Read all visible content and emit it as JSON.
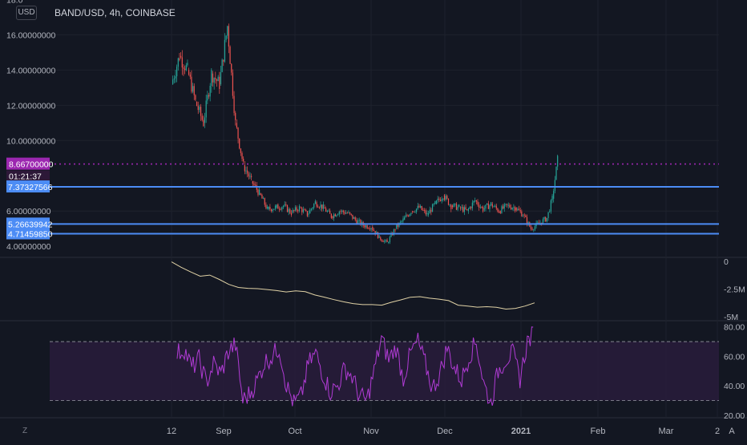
{
  "header": {
    "currency_button": "USD",
    "symbol_title": "BAND/USD, 4h, COINBASE"
  },
  "footer": {
    "left_icon": "Z",
    "right_icon": "A"
  },
  "colors": {
    "background": "#131722",
    "up": "#26a69a",
    "down": "#ef5350",
    "line": "#e0d2a6",
    "rsi": "#b03bd4",
    "rsi_band": "#2a1d3d",
    "level": "#4c8cf5",
    "current_price": "#9c27b0"
  },
  "chart_data": [
    {
      "type": "candlestick",
      "title": "BAND/USD, 4h, COINBASE",
      "ylim": [
        3.6,
        18.2
      ],
      "y_ticks": [
        "16.00000000",
        "14.00000000",
        "12.00000000",
        "10.00000000",
        "6.00000000"
      ],
      "y_ticks_partial": [
        "18.0",
        "4.00000000"
      ],
      "x_ticks": [
        "12",
        "Sep",
        "Oct",
        "Nov",
        "Dec",
        "2021",
        "Feb",
        "Mar",
        "2"
      ],
      "x_range": [
        "2020-08-12",
        "2021-03-05"
      ],
      "price_series": {
        "dates": [
          "2020-08-12",
          "2020-08-15",
          "2020-08-18",
          "2020-08-21",
          "2020-08-24",
          "2020-08-27",
          "2020-08-30",
          "2020-09-02",
          "2020-09-05",
          "2020-09-08",
          "2020-09-11",
          "2020-09-14",
          "2020-09-17",
          "2020-09-20",
          "2020-09-23",
          "2020-09-26",
          "2020-09-29",
          "2020-10-02",
          "2020-10-05",
          "2020-10-08",
          "2020-10-11",
          "2020-10-14",
          "2020-10-17",
          "2020-10-20",
          "2020-10-23",
          "2020-10-26",
          "2020-10-29",
          "2020-11-01",
          "2020-11-04",
          "2020-11-07",
          "2020-11-10",
          "2020-11-13",
          "2020-11-16",
          "2020-11-19",
          "2020-11-22",
          "2020-11-25",
          "2020-11-28",
          "2020-12-01",
          "2020-12-04",
          "2020-12-07",
          "2020-12-10",
          "2020-12-13",
          "2020-12-16",
          "2020-12-19",
          "2020-12-22",
          "2020-12-25",
          "2020-12-28",
          "2020-12-31",
          "2021-01-02",
          "2021-01-04"
        ],
        "close": [
          13.2,
          14.8,
          14.0,
          12.2,
          11.0,
          13.8,
          13.2,
          16.5,
          11.0,
          8.6,
          7.7,
          7.0,
          6.1,
          6.2,
          6.3,
          5.9,
          6.2,
          5.8,
          6.5,
          6.2,
          5.7,
          6.0,
          5.9,
          5.5,
          5.2,
          5.1,
          4.5,
          4.2,
          5.0,
          5.5,
          6.0,
          6.2,
          5.8,
          6.4,
          6.9,
          6.3,
          6.2,
          6.0,
          6.6,
          6.1,
          6.4,
          6.0,
          6.3,
          6.2,
          5.8,
          5.0,
          5.3,
          5.6,
          6.7,
          8.9
        ]
      },
      "levels": [
        {
          "label": "8.66700000",
          "value": 8.667,
          "style": "dotted",
          "sub_label": "01:21:37"
        },
        {
          "label": "7.37327566",
          "value": 7.37327566,
          "style": "solid"
        },
        {
          "label": "5.26639942",
          "value": 5.26639942,
          "style": "solid"
        },
        {
          "label": "4.71459850",
          "value": 4.7145985,
          "style": "solid"
        }
      ]
    },
    {
      "type": "line",
      "ylim": [
        -5,
        0
      ],
      "y_ticks": [
        "0",
        "-2.5M",
        "-5M"
      ],
      "y": [
        -0.1,
        -0.6,
        -1.0,
        -1.3,
        -1.2,
        -1.6,
        -2.1,
        -2.3,
        -2.4,
        -2.5,
        -2.5,
        -2.6,
        -2.7,
        -2.6,
        -2.8,
        -3.0,
        -3.2,
        -3.5,
        -3.7,
        -3.8,
        -3.9,
        -3.9,
        -3.9,
        -3.7,
        -3.5,
        -3.3,
        -3.2,
        -3.4,
        -3.4,
        -3.5,
        -3.9,
        -4.0,
        -4.2,
        -4.1,
        -4.2,
        -4.3,
        -4.3,
        -4.1,
        -3.7
      ]
    },
    {
      "type": "line",
      "ylim": [
        20,
        82
      ],
      "y_ticks": [
        "80.00",
        "60.00",
        "40.00",
        "20.00"
      ],
      "band": [
        30,
        70
      ],
      "y": [
        62,
        65,
        52,
        58,
        42,
        55,
        48,
        63,
        68,
        30,
        35,
        44,
        56,
        60,
        66,
        40,
        28,
        33,
        55,
        62,
        48,
        36,
        40,
        52,
        46,
        33,
        30,
        50,
        72,
        58,
        66,
        45,
        62,
        70,
        55,
        38,
        48,
        66,
        52,
        44,
        60,
        70,
        42,
        28,
        50,
        58,
        62,
        45,
        70,
        76
      ]
    }
  ]
}
